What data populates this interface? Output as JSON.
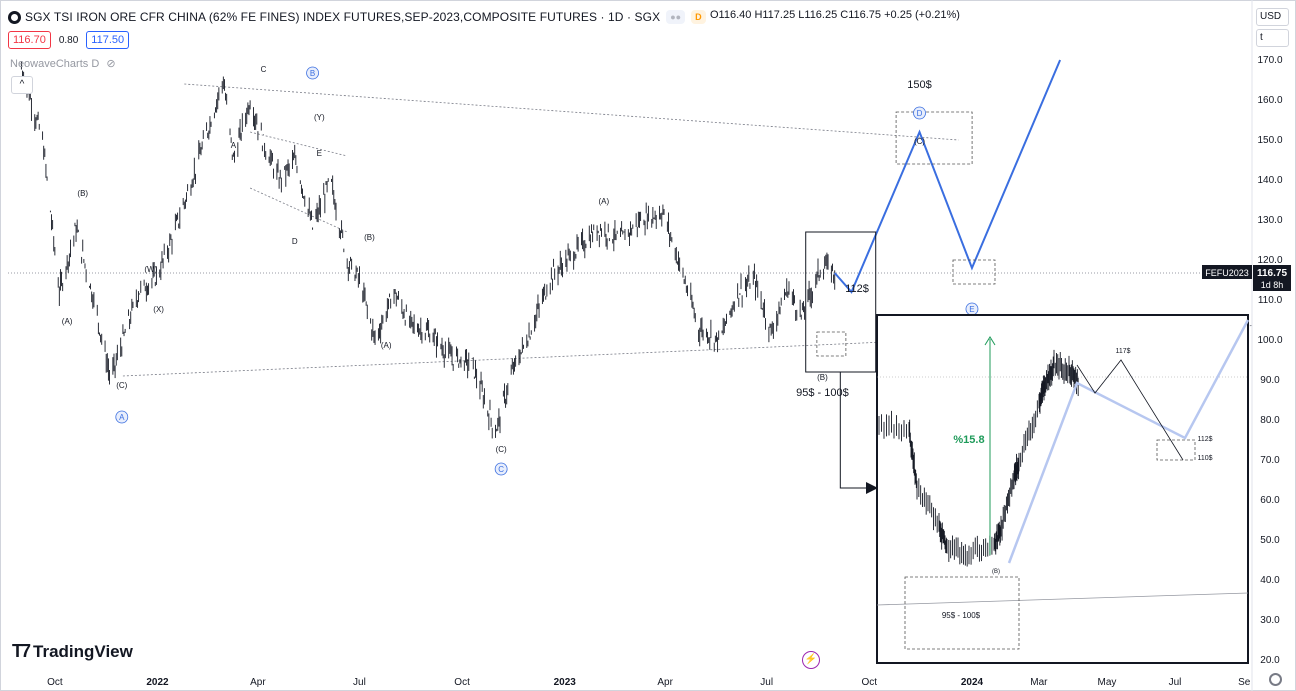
{
  "header": {
    "title": "SGX TSI IRON ORE CFR CHINA (62% FE FINES) INDEX FUTURES,SEP-2023,COMPOSITE FUTURES · 1D · SGX",
    "badge": "D",
    "ohlc": "O116.40 H117.25 L116.25 C116.75 +0.25 (+0.21%)"
  },
  "prices": {
    "bid": "116.70",
    "spread": "0.80",
    "ask": "117.50"
  },
  "indicator": {
    "name": "NeowaveCharts D"
  },
  "currency": "USD",
  "scale_mode": "t",
  "branding": {
    "name": "TradingView"
  },
  "colors": {
    "candle": "#131722",
    "projection": "#3a6ee0",
    "projection_light": "#b7c7f0",
    "wave_label_circle": "#3a6ee0",
    "gain_arrow": "#1f9b5a",
    "axis_text": "#131722",
    "price_tag_bg": "#131722"
  },
  "chart_data": {
    "type": "line",
    "title": "SGX TSI IRON ORE CFR CHINA (62% FE FINES) INDEX FUTURES,SEP-2023,COMPOSITE FUTURES · 1D · SGX",
    "xlabel": "",
    "ylabel": "",
    "x_ticks": [
      "Oct",
      "2022",
      "Apr",
      "Jul",
      "Oct",
      "2023",
      "Apr",
      "Jul",
      "Oct",
      "2024",
      "Mar",
      "May",
      "Jul",
      "Se"
    ],
    "y_ticks": [
      20,
      30,
      40,
      50,
      60,
      70,
      80,
      90,
      100,
      110,
      120,
      130,
      140,
      150,
      160,
      170
    ],
    "ylim": [
      18,
      175
    ],
    "last_price": {
      "value": 116.75,
      "symbol": "FEFU2023",
      "countdown": "1d 8h"
    },
    "series": [
      {
        "x": [
          "2021-09-01",
          "2021-09-20",
          "2021-10-05",
          "2021-10-20",
          "2021-11-05",
          "2021-11-20",
          "2021-12-01",
          "2021-12-15",
          "2022-01-01",
          "2022-01-20",
          "2022-02-10",
          "2022-03-01",
          "2022-03-10",
          "2022-03-25",
          "2022-04-05",
          "2022-04-20",
          "2022-05-05",
          "2022-05-20",
          "2022-06-05",
          "2022-06-20",
          "2022-07-01",
          "2022-07-15",
          "2022-08-01",
          "2022-08-15",
          "2022-09-01",
          "2022-09-20",
          "2022-10-10",
          "2022-10-31",
          "2022-11-15",
          "2022-12-01",
          "2022-12-20",
          "2023-01-10",
          "2023-02-01",
          "2023-02-20",
          "2023-03-10",
          "2023-03-30",
          "2023-04-15",
          "2023-05-01",
          "2023-05-20",
          "2023-06-05",
          "2023-06-20",
          "2023-07-05",
          "2023-07-20",
          "2023-08-01",
          "2023-08-10",
          "2023-08-20",
          "2023-08-31"
        ],
        "values": [
          168,
          150,
          112,
          128,
          110,
          90,
          100,
          112,
          116,
          130,
          148,
          165,
          145,
          160,
          150,
          140,
          145,
          128,
          140,
          120,
          115,
          100,
          112,
          104,
          102,
          96,
          94,
          77,
          92,
          102,
          116,
          122,
          128,
          125,
          130,
          132,
          118,
          103,
          100,
          112,
          115,
          102,
          113,
          106,
          112,
          119,
          116.75
        ]
      }
    ],
    "projection": {
      "x": [
        "2023-08-31",
        "2023-09-15",
        "2023-11-15",
        "2024-01-01",
        "2024-03-20"
      ],
      "values": [
        116.75,
        112,
        152,
        118,
        170
      ]
    },
    "annotations": [
      {
        "label": "(A)",
        "x": "2021-10-12",
        "y": 104
      },
      {
        "label": "(B)",
        "x": "2021-10-26",
        "y": 136
      },
      {
        "label": "(C)",
        "x": "2021-11-30",
        "y": 88
      },
      {
        "label": "A",
        "x": "2021-11-30",
        "y": 80,
        "circled": true
      },
      {
        "label": "(W)",
        "x": "2021-12-26",
        "y": 117
      },
      {
        "label": "(X)",
        "x": "2022-01-02",
        "y": 107
      },
      {
        "label": "A",
        "x": "2022-03-10",
        "y": 148
      },
      {
        "label": "C",
        "x": "2022-04-06",
        "y": 167
      },
      {
        "label": "B",
        "x": "2022-05-20",
        "y": 166,
        "circled": true
      },
      {
        "label": "(Y)",
        "x": "2022-05-26",
        "y": 155
      },
      {
        "label": "E",
        "x": "2022-05-26",
        "y": 146
      },
      {
        "label": "D",
        "x": "2022-05-04",
        "y": 124
      },
      {
        "label": "(B)",
        "x": "2022-07-10",
        "y": 125
      },
      {
        "label": "(A)",
        "x": "2022-07-25",
        "y": 98
      },
      {
        "label": "(C)",
        "x": "2022-11-05",
        "y": 72
      },
      {
        "label": "C",
        "x": "2022-11-05",
        "y": 67,
        "circled": true
      },
      {
        "label": "(A)",
        "x": "2023-02-05",
        "y": 134
      },
      {
        "label": "(B)",
        "x": "2023-08-20",
        "y": 90
      },
      {
        "label": "95$ - 100$",
        "x": "2023-08-20",
        "y": 86
      },
      {
        "label": "112$",
        "x": "2023-09-20",
        "y": 112
      },
      {
        "label": "150$",
        "x": "2023-11-15",
        "y": 163
      },
      {
        "label": "D",
        "x": "2023-11-15",
        "y": 156,
        "circled": true
      },
      {
        "label": "(C)",
        "x": "2023-11-15",
        "y": 149
      },
      {
        "label": "E",
        "x": "2024-01-01",
        "y": 107,
        "circled": true
      }
    ],
    "inset": {
      "gain_label": "%15.8",
      "labels": [
        "117$",
        "112$",
        "110$",
        "(B)",
        "95$ - 100$"
      ]
    }
  }
}
